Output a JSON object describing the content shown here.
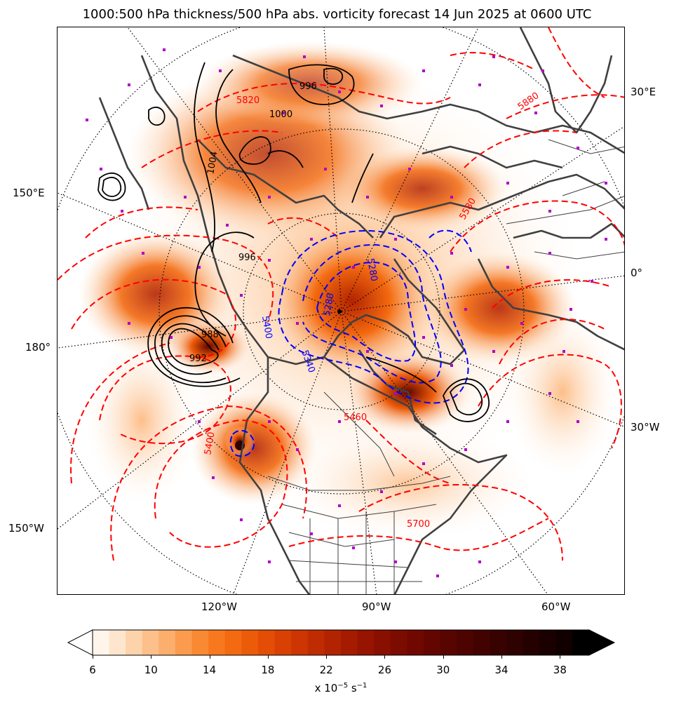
{
  "title": "1000:500 hPa thickness/500 hPa abs. vorticity forecast 14 Jun 2025 at 0600 UTC",
  "longitude_labels": {
    "right_30e": "30°E",
    "right_0": "0°",
    "right_30w": "30°W",
    "left_150e": "150°E",
    "left_180": "180°",
    "left_150w": "150°W",
    "bottom_120w": "120°W",
    "bottom_90w": "90°W",
    "bottom_60w": "60°W"
  },
  "colorbar": {
    "ticks": [
      "6",
      "10",
      "14",
      "18",
      "22",
      "26",
      "30",
      "34",
      "38"
    ],
    "units_prefix": "x 10",
    "units_exp": "−5",
    "units_suffix": " s",
    "units_exp2": "−1",
    "colors": [
      "#fff5eb",
      "#fee6ce",
      "#fdd3ab",
      "#fdc08a",
      "#fcae6c",
      "#fb9b4d",
      "#fa8934",
      "#f7781e",
      "#f36a10",
      "#ec5b0a",
      "#e34d06",
      "#d94104",
      "#cd3602",
      "#c02c01",
      "#b22301",
      "#a41b00",
      "#961400",
      "#890f00",
      "#7c0b00",
      "#700800",
      "#640600",
      "#580500",
      "#4d0400",
      "#420300",
      "#380200",
      "#2e0200",
      "#240100",
      "#1a0000",
      "#100000",
      "#000000"
    ]
  },
  "contour_labels": {
    "thickness_red": [
      "5820",
      "5880",
      "5580",
      "5700",
      "5400",
      "5460"
    ],
    "thickness_blue": [
      "5280",
      "5340",
      "5400"
    ],
    "mslp_black": [
      "996",
      "1000",
      "1004",
      "988",
      "992"
    ]
  },
  "colors": {
    "thickness_warm": "#ff0000",
    "thickness_cold": "#0000ff",
    "mslp": "#000000",
    "coastline": "#404040",
    "vorticity_markers": "#b000c8"
  }
}
